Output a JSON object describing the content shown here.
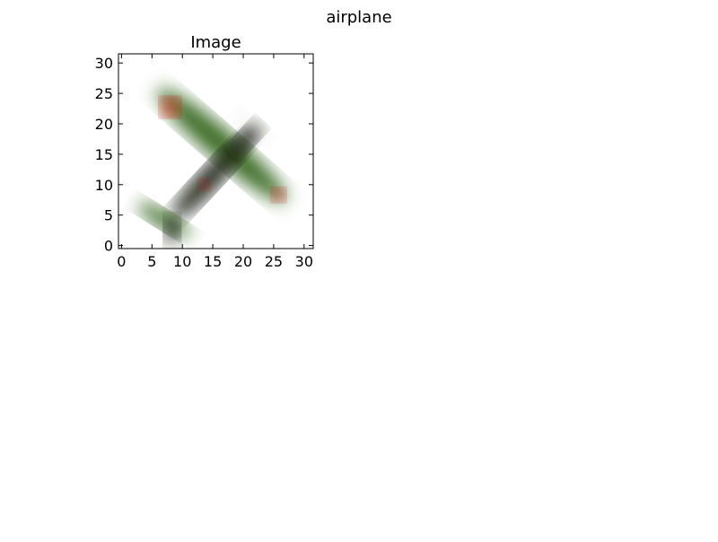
{
  "figure": {
    "suptitle": "airplane"
  },
  "chart_data": {
    "type": "image",
    "title": "Image",
    "xlabel": "",
    "ylabel": "",
    "xlim": [
      -0.5,
      31.5
    ],
    "ylim": [
      31.5,
      -0.5
    ],
    "xticks": [
      0,
      5,
      10,
      15,
      20,
      25,
      30
    ],
    "yticks": [
      0,
      5,
      10,
      15,
      20,
      25,
      30
    ],
    "image_size": [
      32,
      32
    ],
    "grid": false,
    "colors": {
      "background": "#ffffff",
      "body": "#3f6e2c",
      "body_light": "#5f9444",
      "dark": "#1c2418",
      "roundel": "#e0180f"
    }
  }
}
